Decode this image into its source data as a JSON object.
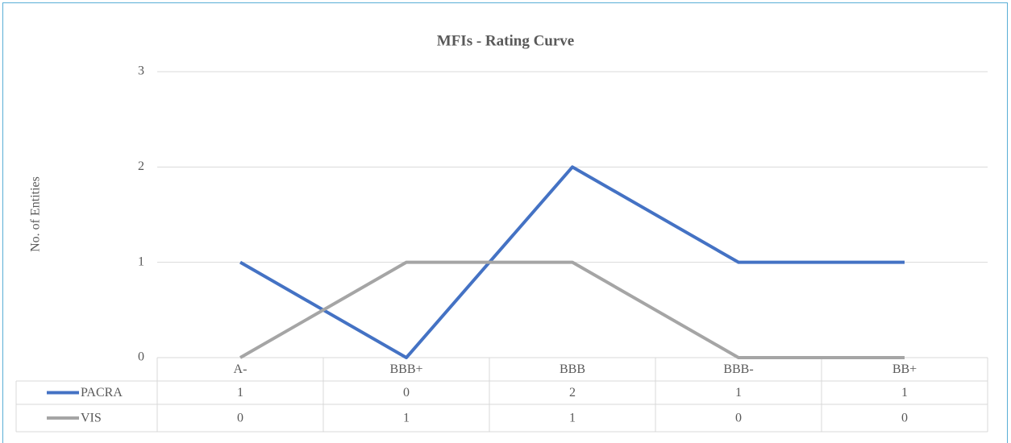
{
  "chart_data": {
    "type": "line",
    "title": "MFIs - Rating Curve",
    "y_label": "No. of Entities",
    "categories": [
      "A-",
      "BBB+",
      "BBB",
      "BBB-",
      "BB+"
    ],
    "series": [
      {
        "name": "PACRA",
        "color": "#4472c4",
        "values": [
          1,
          0,
          2,
          1,
          1
        ]
      },
      {
        "name": "VIS",
        "color": "#a5a5a5",
        "values": [
          0,
          1,
          1,
          0,
          0
        ]
      }
    ],
    "ylim": [
      0,
      3
    ],
    "yticks": [
      0,
      1,
      2,
      3
    ],
    "grid": true,
    "data_table": true
  }
}
